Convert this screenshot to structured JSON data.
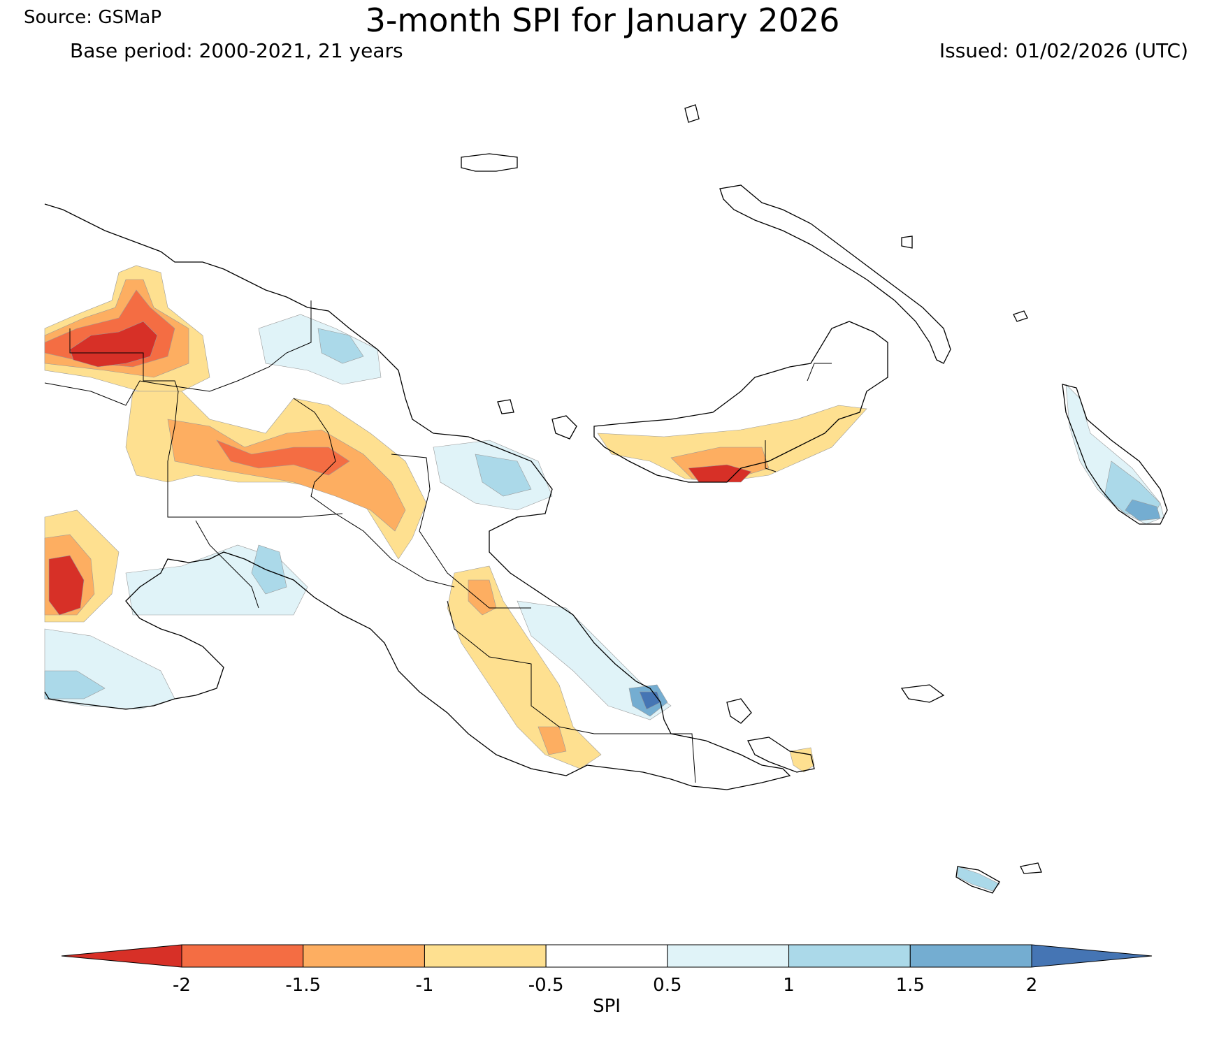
{
  "header": {
    "title": "3-month SPI for January 2026",
    "source": "Source: GSMaP",
    "base_period": "Base period: 2000-2021, 21 years",
    "issued": "Issued: 01/02/2026 (UTC)"
  },
  "legend": {
    "label": "SPI",
    "ticks": [
      "-2",
      "-1.5",
      "-1",
      "-0.5",
      "0.5",
      "1",
      "1.5",
      "2"
    ],
    "bins": [
      {
        "name": "below -2",
        "color": "#d73027"
      },
      {
        "name": "-2 to -1.5",
        "color": "#f46d43"
      },
      {
        "name": "-1.5 to -1",
        "color": "#fdae61"
      },
      {
        "name": "-1 to -0.5",
        "color": "#fee090"
      },
      {
        "name": "-0.5 to 0.5",
        "color": "#ffffff"
      },
      {
        "name": "0.5 to 1",
        "color": "#e0f3f8"
      },
      {
        "name": "1 to 1.5",
        "color": "#abd9e9"
      },
      {
        "name": "1.5 to 2",
        "color": "#74add1"
      },
      {
        "name": "above 2",
        "color": "#4575b4"
      }
    ]
  }
}
